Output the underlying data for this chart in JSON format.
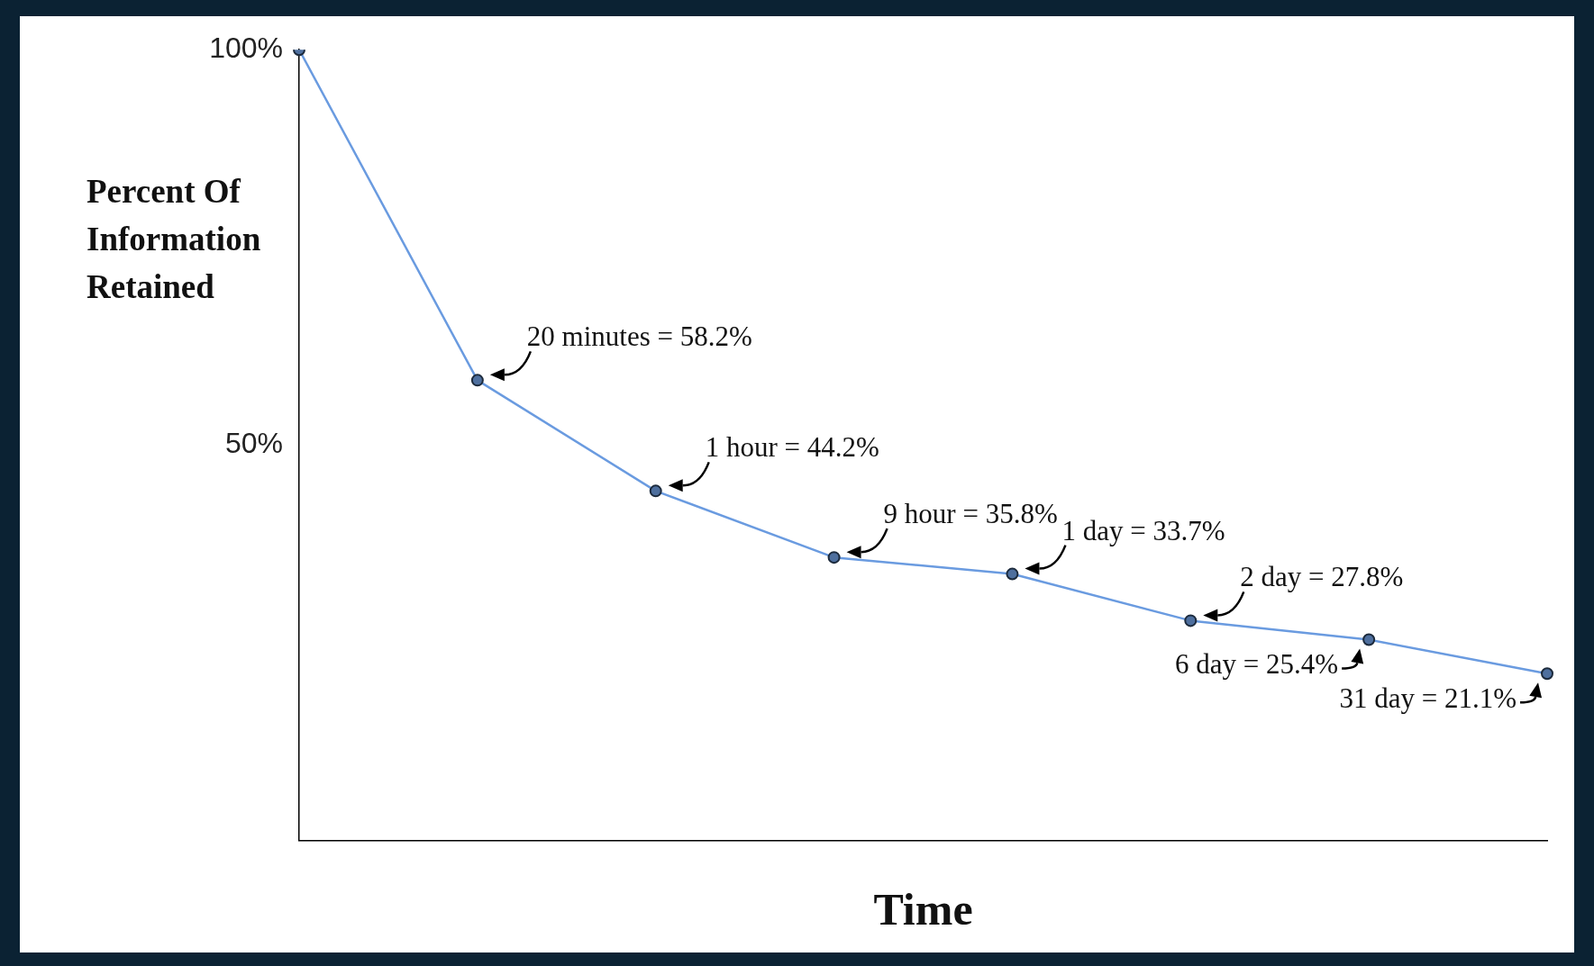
{
  "chart_data": {
    "type": "line",
    "ylabel": "Percent Of Information Retained",
    "xlabel": "Time",
    "categories": [
      null,
      null,
      null,
      null,
      null,
      null,
      null,
      null
    ],
    "values": [
      100,
      58.2,
      44.2,
      35.8,
      33.7,
      27.8,
      25.4,
      21.1
    ],
    "value_labels": [
      null,
      "20 minutes = 58.2%",
      "1 hour = 44.2%",
      "9 hour = 35.8%",
      "1 day = 33.7%",
      "2 day = 27.8%",
      "6 day = 25.4%",
      "31 day = 21.1%"
    ],
    "color": "#6a9be0",
    "marker": "circle",
    "line_style": "solid",
    "ylim": [
      0,
      100
    ],
    "yticks": [
      {
        "value": 50,
        "label": "50%"
      },
      {
        "value": 100,
        "label": "100%"
      }
    ],
    "grid": false,
    "legend": false
  }
}
